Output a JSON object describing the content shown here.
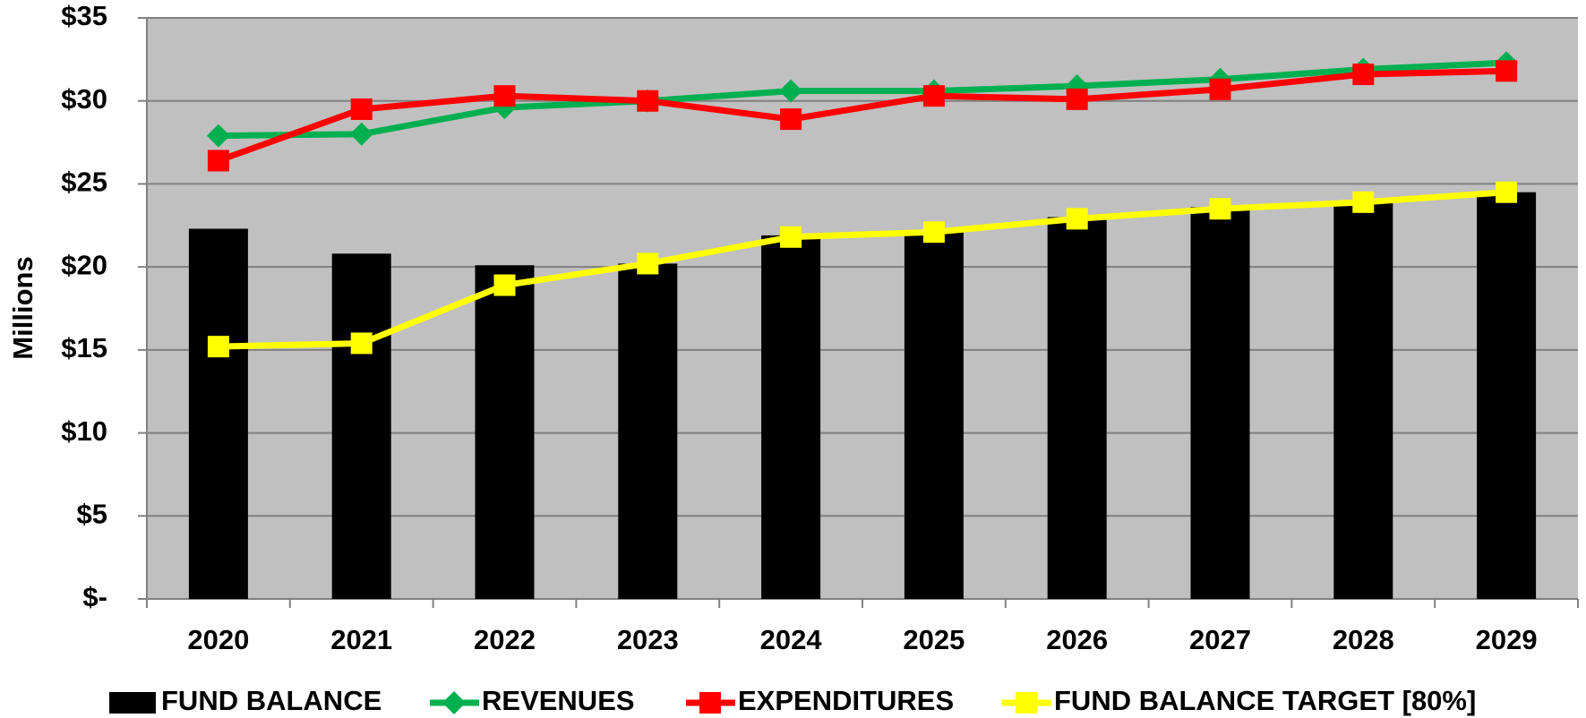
{
  "chart_data": {
    "type": "bar_line",
    "y_label": "Millions",
    "categories": [
      "2020",
      "2021",
      "2022",
      "2023",
      "2024",
      "2025",
      "2026",
      "2027",
      "2028",
      "2029"
    ],
    "series": [
      {
        "name": "FUND BALANCE",
        "color": "#000000",
        "kind": "bar",
        "values": [
          22.3,
          20.8,
          20.1,
          20.2,
          21.9,
          22.1,
          23.0,
          23.6,
          24.0,
          24.5
        ]
      },
      {
        "name": "REVENUES",
        "color": "#00b050",
        "kind": "line",
        "marker": "diamond",
        "values": [
          27.9,
          28.0,
          29.6,
          30.0,
          30.6,
          30.6,
          30.9,
          31.3,
          31.9,
          32.3
        ]
      },
      {
        "name": "EXPENDITURES",
        "color": "#ff0000",
        "kind": "line",
        "marker": "square",
        "values": [
          26.4,
          29.5,
          30.3,
          30.0,
          28.9,
          30.3,
          30.1,
          30.7,
          31.6,
          31.8
        ]
      },
      {
        "name": "FUND BALANCE TARGET [80%]",
        "color": "#ffff00",
        "kind": "line",
        "marker": "square",
        "values": [
          15.2,
          15.4,
          18.9,
          20.2,
          21.8,
          22.1,
          22.9,
          23.5,
          23.9,
          24.5
        ]
      }
    ],
    "ylim": [
      0,
      35
    ],
    "yticks": [
      {
        "value": 0,
        "label": "$-"
      },
      {
        "value": 5,
        "label": "$5"
      },
      {
        "value": 10,
        "label": "$10"
      },
      {
        "value": 15,
        "label": "$15"
      },
      {
        "value": 20,
        "label": "$20"
      },
      {
        "value": 25,
        "label": "$25"
      },
      {
        "value": 30,
        "label": "$30"
      },
      {
        "value": 35,
        "label": "$35"
      }
    ],
    "grid": true,
    "legend": "bottom"
  }
}
